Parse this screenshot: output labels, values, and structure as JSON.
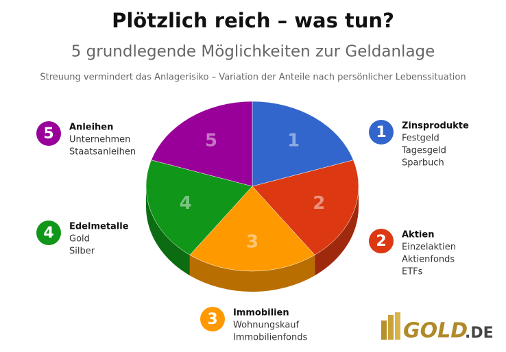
{
  "chart_data": {
    "type": "pie",
    "title": "Plötzlich reich – was tun?",
    "subtitle": "5 grundlegende Möglichkeiten zur Geldanlage",
    "note": "Streuung vermindert das Anlagerisiko – Variation der Anteile nach persönlicher Lebenssituation",
    "categories": [
      "Zinsprodukte",
      "Aktien",
      "Immobilien",
      "Edelmetalle",
      "Anleihen"
    ],
    "values": [
      20,
      20,
      20,
      20,
      20
    ],
    "numbers": [
      "1",
      "2",
      "3",
      "4",
      "5"
    ],
    "colors": [
      "#3366cc",
      "#dc3912",
      "#ff9900",
      "#109618",
      "#990099"
    ],
    "details": [
      [
        "Festgeld",
        "Tagesgeld",
        "Sparbuch"
      ],
      [
        "Einzelaktien",
        "Aktienfonds",
        "ETFs"
      ],
      [
        "Wohnungskauf",
        "Immobilienfonds"
      ],
      [
        "Gold",
        "Silber"
      ],
      [
        "Unternehmen",
        "Staatsanleihen"
      ]
    ],
    "logo": {
      "main": "GOLD",
      "suffix": ".DE"
    }
  }
}
